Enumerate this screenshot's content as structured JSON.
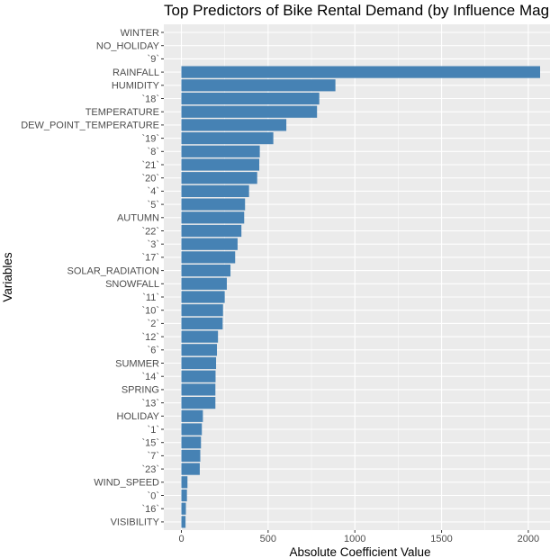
{
  "chart_data": {
    "type": "bar",
    "orientation": "horizontal",
    "title": "Top Predictors of Bike Rental Demand (by Influence Magnitude)",
    "xlabel": "Absolute Coefficient Value",
    "ylabel": "Variables",
    "xlim": [
      -40,
      2110
    ],
    "xticks": [
      0,
      500,
      1000,
      1500,
      2000
    ],
    "grid": true,
    "legend": "none",
    "colors": {
      "bar": "#4682b4",
      "panel": "#ebebeb"
    },
    "categories": [
      "WINTER",
      "NO_HOLIDAY",
      "`9`",
      "RAINFALL",
      "HUMIDITY",
      "`18`",
      "TEMPERATURE",
      "DEW_POINT_TEMPERATURE",
      "`19`",
      "`8`",
      "`21`",
      "`20`",
      "`4`",
      "`5`",
      "AUTUMN",
      "`22`",
      "`3`",
      "`17`",
      "SOLAR_RADIATION",
      "SNOWFALL",
      "`11`",
      "`10`",
      "`2`",
      "`12`",
      "`6`",
      "SUMMER",
      "`14`",
      "SPRING",
      "`13`",
      "HOLIDAY",
      "`1`",
      "`15`",
      "`7`",
      "`23`",
      "WIND_SPEED",
      "`0`",
      "`16`",
      "VISIBILITY"
    ],
    "values": [
      0,
      0,
      0,
      2068,
      888,
      795,
      782,
      605,
      530,
      452,
      449,
      437,
      390,
      367,
      362,
      346,
      324,
      310,
      283,
      262,
      250,
      240,
      238,
      211,
      205,
      200,
      197,
      196,
      196,
      124,
      118,
      113,
      109,
      106,
      35,
      32,
      26,
      24
    ]
  }
}
